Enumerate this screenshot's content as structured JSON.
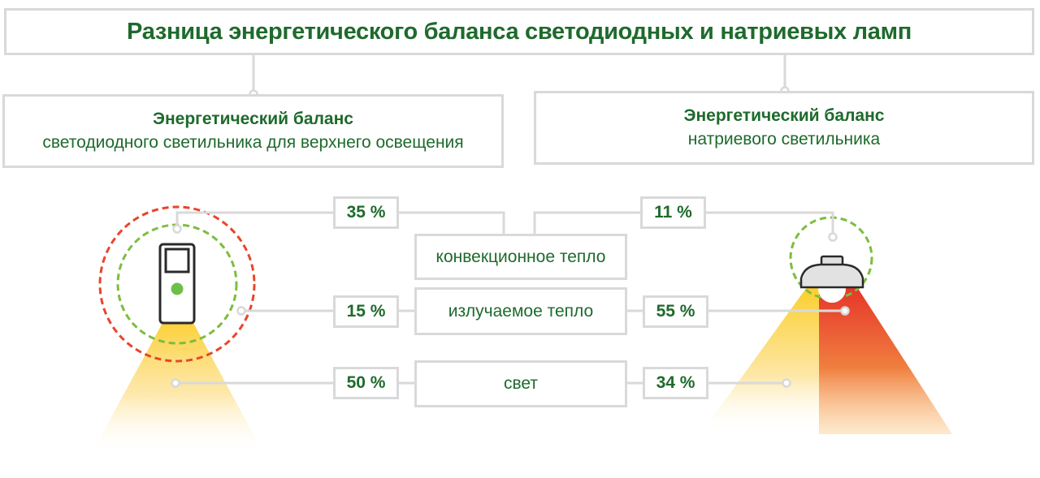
{
  "title": "Разница энергетического баланса светодиодных и натриевых ламп",
  "left": {
    "heading": "Энергетический баланс",
    "subheading": "светодиодного светильника для верхнего освещения",
    "values": {
      "convection": "35 %",
      "radiant": "15 %",
      "light": "50 %"
    }
  },
  "right": {
    "heading": "Энергетический баланс",
    "subheading": "натриевого светильника",
    "values": {
      "convection": "11 %",
      "radiant": "55 %",
      "light": "34 %"
    }
  },
  "categories": {
    "convection": "конвекционное тепло",
    "radiant": "излучаемое тепло",
    "light": "свет"
  },
  "colors": {
    "green_text": "#1e6a2c",
    "border_gray": "#d9d9d9",
    "led_dot": "#6cc04a",
    "heat_red": "#e8452c",
    "light_yellow": "#fcd54a",
    "sodium_red": "#e7432b"
  },
  "icons": {
    "led_fixture": "led-fixture-icon",
    "sodium_lamp": "sodium-lamp-icon"
  }
}
